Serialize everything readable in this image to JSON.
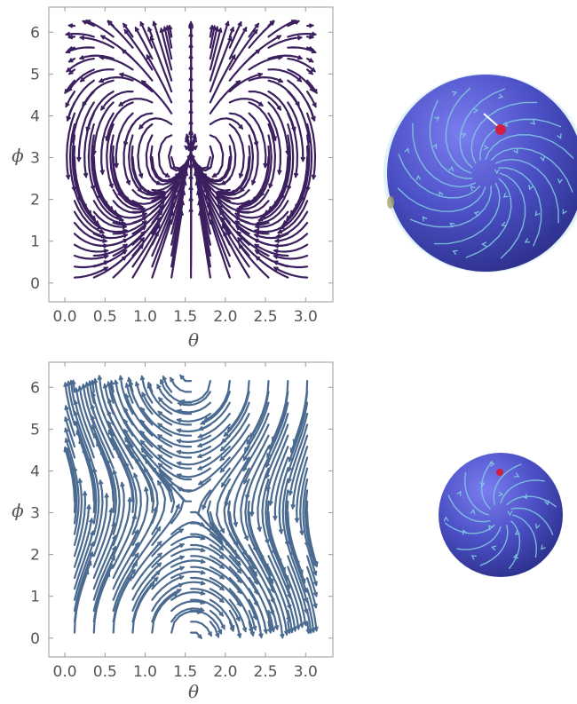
{
  "chart_data": [
    {
      "type": "streamplot",
      "panel": "top-left",
      "xlabel": "θ",
      "ylabel": "ϕ",
      "xlim": [
        -0.2,
        3.34
      ],
      "ylim": [
        -0.45,
        6.6
      ],
      "xticks": [
        "0.0",
        "0.5",
        "1.0",
        "1.5",
        "2.0",
        "2.5",
        "3.0"
      ],
      "xtick_values": [
        0,
        0.5,
        1.0,
        1.5,
        2.0,
        2.5,
        3.0
      ],
      "yticks": [
        "0",
        "1",
        "2",
        "3",
        "4",
        "5",
        "6"
      ],
      "ytick_values": [
        0,
        1,
        2,
        3,
        4,
        5,
        6
      ],
      "stream_color": "#3b1f5e",
      "field": "dipole",
      "singularity": [
        1.5708,
        3.1416
      ]
    },
    {
      "type": "streamplot",
      "panel": "bottom-left",
      "xlabel": "θ",
      "ylabel": "ϕ",
      "xlim": [
        -0.2,
        3.34
      ],
      "ylim": [
        -0.45,
        6.6
      ],
      "xticks": [
        "0.0",
        "0.5",
        "1.0",
        "1.5",
        "2.0",
        "2.5",
        "3.0"
      ],
      "xtick_values": [
        0,
        0.5,
        1.0,
        1.5,
        2.0,
        2.5,
        3.0
      ],
      "yticks": [
        "0",
        "1",
        "2",
        "3",
        "4",
        "5",
        "6"
      ],
      "ytick_values": [
        0,
        1,
        2,
        3,
        4,
        5,
        6
      ],
      "stream_color": "#4a6a90",
      "field": "centers",
      "centers": [
        [
          1.5708,
          3.1416
        ],
        [
          1.5708,
          0
        ],
        [
          1.5708,
          6.2832
        ]
      ]
    }
  ],
  "spheres": [
    {
      "panel": "top-right",
      "sphere_color": "#4b4fc4",
      "stream_color": "#7fc8e0",
      "marker_color": "#d02040"
    },
    {
      "panel": "bottom-right",
      "sphere_color": "#4b4fc4",
      "stream_color": "#7fc8e0",
      "marker_color": "#d02040"
    }
  ]
}
